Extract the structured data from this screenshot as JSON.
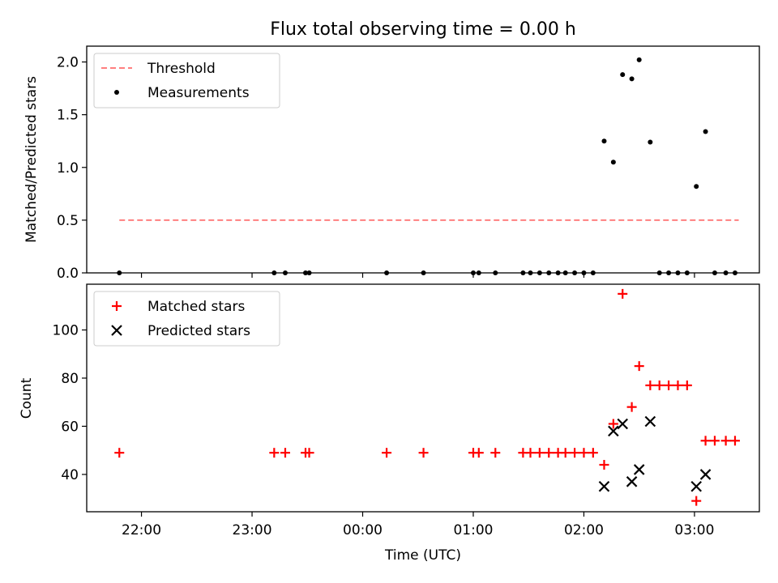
{
  "title": "Flux total observing time = 0.00 h",
  "xlabel": "Time (UTC)",
  "x_ticks": [
    "22:00",
    "23:00",
    "00:00",
    "01:00",
    "02:00",
    "03:00"
  ],
  "colors": {
    "threshold": "#ff7f7f",
    "measurement": "#000000",
    "matched": "#ff0000",
    "predicted": "#000000"
  },
  "chart_data": [
    {
      "type": "scatter",
      "ylabel": "Matched/Predicted stars",
      "ylim": [
        0,
        2.15
      ],
      "y_ticks": [
        "0.0",
        "0.5",
        "1.0",
        "1.5",
        "2.0"
      ],
      "legend": {
        "placement": "upper-left",
        "entries": [
          "Threshold",
          "Measurements"
        ]
      },
      "threshold": {
        "name": "Threshold",
        "y": 0.5,
        "x_start": "21:48",
        "x_end": "03:24"
      },
      "series": [
        {
          "name": "Measurements",
          "marker": "dot",
          "points": [
            [
              "21:48",
              0
            ],
            [
              "23:12",
              0
            ],
            [
              "23:18",
              0
            ],
            [
              "23:29",
              0
            ],
            [
              "23:31",
              0
            ],
            [
              "00:13",
              0
            ],
            [
              "00:33",
              0
            ],
            [
              "01:00",
              0
            ],
            [
              "01:03",
              0
            ],
            [
              "01:12",
              0
            ],
            [
              "01:27",
              0
            ],
            [
              "01:31",
              0
            ],
            [
              "01:36",
              0
            ],
            [
              "01:41",
              0
            ],
            [
              "01:46",
              0
            ],
            [
              "01:50",
              0
            ],
            [
              "01:55",
              0
            ],
            [
              "02:00",
              0
            ],
            [
              "02:05",
              0
            ],
            [
              "02:11",
              1.25
            ],
            [
              "02:16",
              1.05
            ],
            [
              "02:21",
              1.88
            ],
            [
              "02:26",
              1.84
            ],
            [
              "02:30",
              2.02
            ],
            [
              "02:36",
              1.24
            ],
            [
              "02:41",
              0
            ],
            [
              "02:46",
              0
            ],
            [
              "02:51",
              0
            ],
            [
              "02:56",
              0
            ],
            [
              "03:01",
              0.82
            ],
            [
              "03:06",
              1.34
            ],
            [
              "03:11",
              0
            ],
            [
              "03:17",
              0
            ],
            [
              "03:22",
              0
            ]
          ]
        }
      ]
    },
    {
      "type": "scatter",
      "ylabel": "Count",
      "ylim": [
        24.5,
        119
      ],
      "y_ticks": [
        "40",
        "60",
        "80",
        "100"
      ],
      "legend": {
        "placement": "upper-left",
        "entries": [
          "Matched stars",
          "Predicted stars"
        ]
      },
      "series": [
        {
          "name": "Matched stars",
          "marker": "plus",
          "points": [
            [
              "21:48",
              49
            ],
            [
              "23:12",
              49
            ],
            [
              "23:18",
              49
            ],
            [
              "23:29",
              49
            ],
            [
              "23:31",
              49
            ],
            [
              "00:13",
              49
            ],
            [
              "00:33",
              49
            ],
            [
              "01:00",
              49
            ],
            [
              "01:03",
              49
            ],
            [
              "01:12",
              49
            ],
            [
              "01:27",
              49
            ],
            [
              "01:31",
              49
            ],
            [
              "01:36",
              49
            ],
            [
              "01:41",
              49
            ],
            [
              "01:46",
              49
            ],
            [
              "01:50",
              49
            ],
            [
              "01:55",
              49
            ],
            [
              "02:00",
              49
            ],
            [
              "02:05",
              49
            ],
            [
              "02:11",
              44
            ],
            [
              "02:16",
              61
            ],
            [
              "02:21",
              115
            ],
            [
              "02:26",
              68
            ],
            [
              "02:30",
              85
            ],
            [
              "02:36",
              77
            ],
            [
              "02:41",
              77
            ],
            [
              "02:46",
              77
            ],
            [
              "02:51",
              77
            ],
            [
              "02:56",
              77
            ],
            [
              "03:01",
              29
            ],
            [
              "03:06",
              54
            ],
            [
              "03:11",
              54
            ],
            [
              "03:17",
              54
            ],
            [
              "03:22",
              54
            ]
          ]
        },
        {
          "name": "Predicted stars",
          "marker": "x",
          "points": [
            [
              "02:11",
              35
            ],
            [
              "02:16",
              58
            ],
            [
              "02:21",
              61
            ],
            [
              "02:26",
              37
            ],
            [
              "02:30",
              42
            ],
            [
              "02:36",
              62
            ],
            [
              "03:01",
              35
            ],
            [
              "03:06",
              40
            ]
          ]
        }
      ]
    }
  ]
}
